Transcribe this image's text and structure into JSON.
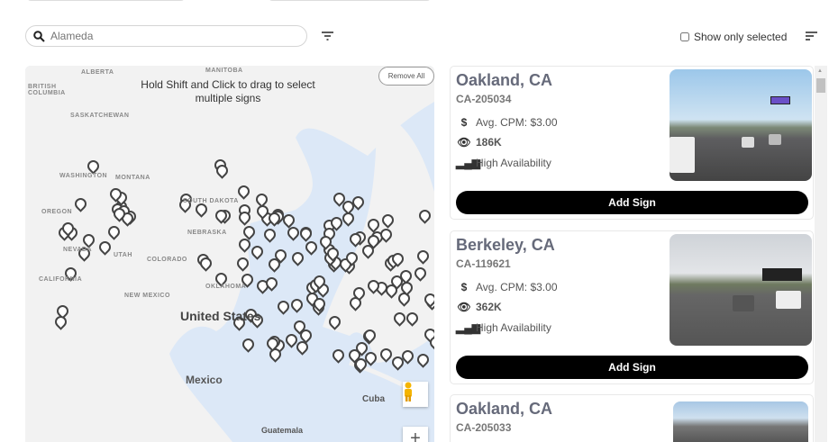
{
  "search": {
    "placeholder": "Alameda",
    "icon": "search-icon"
  },
  "filter_icon": "filter-icon",
  "show_only_selected": {
    "label": "Show only selected",
    "checked": false
  },
  "sort_icon": "sort-icon",
  "map": {
    "hint": "Hold Shift and Click to drag to select multiple signs",
    "remove_all": "Remove All",
    "labels": [
      {
        "text": "BRITISH COLUMBIA"
      },
      {
        "text": "ALBERTA"
      },
      {
        "text": "MANITOBA"
      },
      {
        "text": "SASKATCHEWAN"
      },
      {
        "text": "WASHINGTON"
      },
      {
        "text": "MONTANA"
      },
      {
        "text": "OREGON"
      },
      {
        "text": "SOUTH DAKOTA"
      },
      {
        "text": "NEBRASKA"
      },
      {
        "text": "NEVADA"
      },
      {
        "text": "UTAH"
      },
      {
        "text": "COLORADO"
      },
      {
        "text": "CALIFORNIA"
      },
      {
        "text": "NEW MEXICO"
      },
      {
        "text": "OKLAHOMA"
      },
      {
        "text": "United States"
      },
      {
        "text": "Mexico"
      },
      {
        "text": "Cuba"
      },
      {
        "text": "Guatemala"
      }
    ],
    "zoom_in": "+",
    "colors": {
      "land": "#f2f2f2",
      "water": "#dce8f7",
      "pin": "#444444"
    }
  },
  "signs": [
    {
      "city": "Oakland, CA",
      "code": "CA-205034",
      "cpm": "Avg. CPM: $3.00",
      "impressions": "186K",
      "availability": "High Availability",
      "button": "Add Sign"
    },
    {
      "city": "Berkeley, CA",
      "code": "CA-119621",
      "cpm": "Avg. CPM: $3.00",
      "impressions": "362K",
      "availability": "High Availability",
      "button": "Add Sign"
    },
    {
      "city": "Oakland, CA",
      "code": "CA-205033"
    }
  ]
}
